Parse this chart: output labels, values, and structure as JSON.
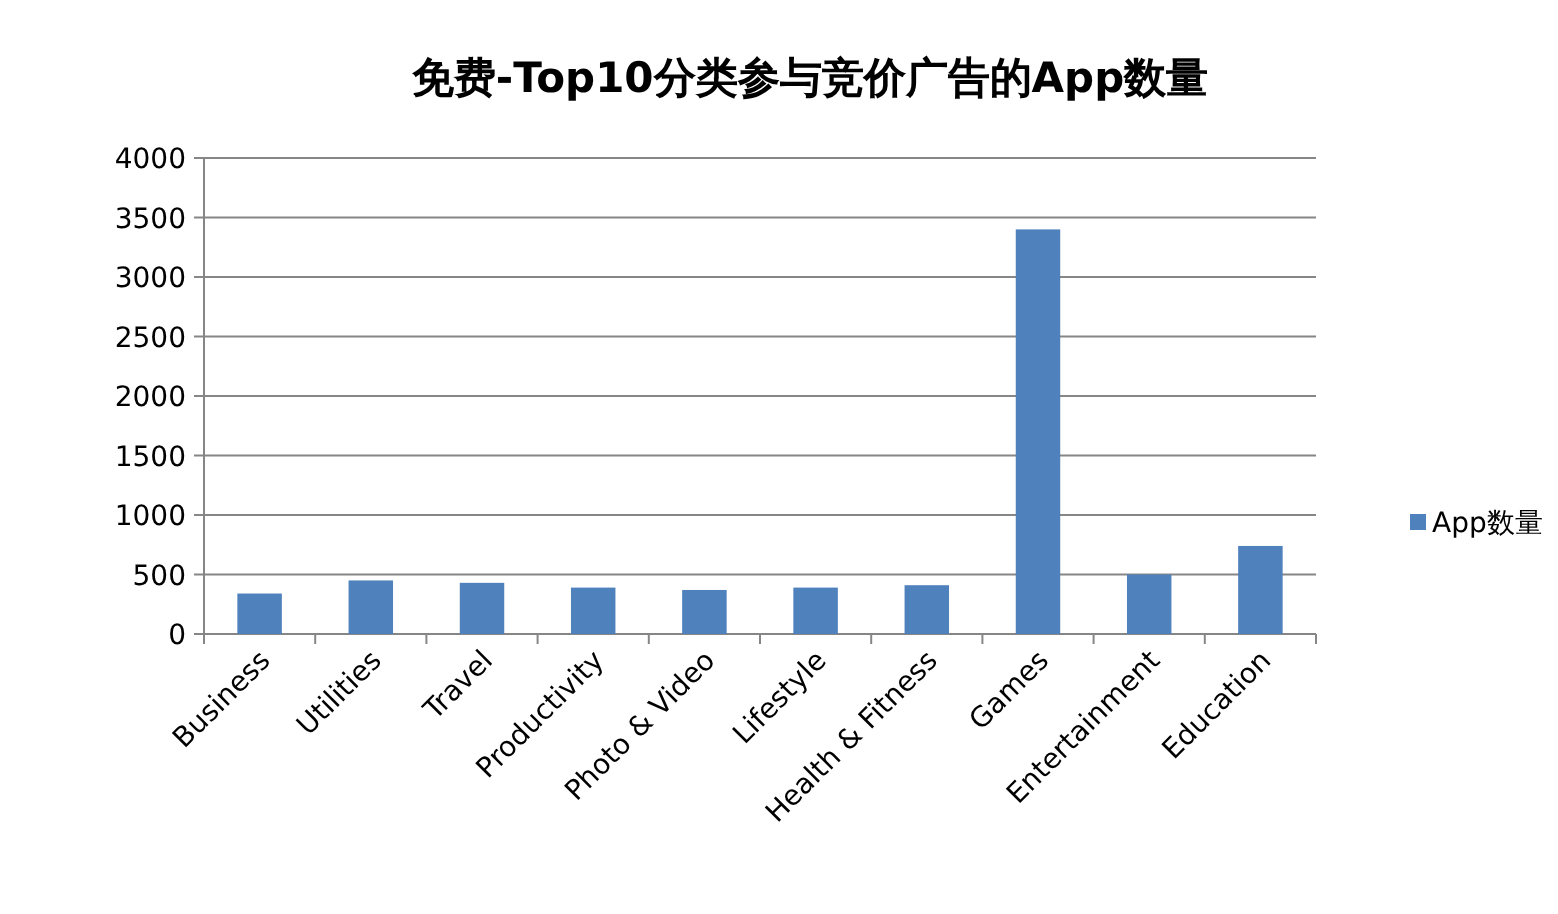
{
  "chart_data": {
    "type": "bar",
    "title": "免费-Top10分类参与竞价广告的App数量",
    "categories": [
      "Business",
      "Utilities",
      "Travel",
      "Productivity",
      "Photo & Video",
      "Lifestyle",
      "Health & Fitness",
      "Games",
      "Entertainment",
      "Education"
    ],
    "series": [
      {
        "name": "App数量",
        "color": "#4f81bd",
        "values": [
          340,
          450,
          430,
          390,
          370,
          390,
          410,
          3400,
          500,
          740
        ]
      }
    ],
    "ylim": [
      0,
      4000
    ],
    "yticks": [
      0,
      500,
      1000,
      1500,
      2000,
      2500,
      3000,
      3500,
      4000
    ],
    "grid": "y",
    "legend": "right"
  }
}
